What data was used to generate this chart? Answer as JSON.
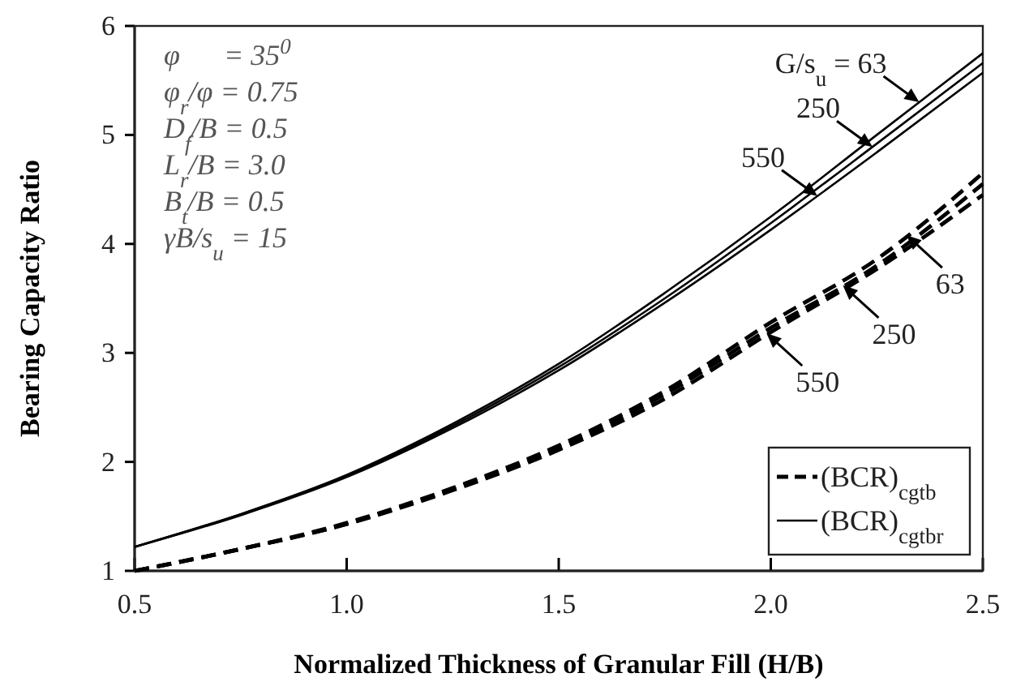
{
  "chart_data": {
    "type": "line",
    "xlabel": "Normalized Thickness of Granular Fill (H/B)",
    "ylabel": "Bearing Capacity Ratio",
    "x": [
      0.5,
      0.75,
      1.0,
      1.25,
      1.5,
      1.75,
      2.0,
      2.25,
      2.5
    ],
    "series": [
      {
        "name": "(BCR)$_{cgtb}$",
        "color": "#000000",
        "line_style": "dashed",
        "values": [
          1.0,
          1.2,
          1.44,
          1.76,
          2.15,
          2.65,
          3.28,
          3.86,
          4.65
        ]
      },
      {
        "color": "#000000",
        "line_style": "dashed",
        "values": [
          1.0,
          1.2,
          1.43,
          1.75,
          2.13,
          2.62,
          3.23,
          3.8,
          4.55
        ]
      },
      {
        "color": "#000000",
        "line_style": "dashed",
        "values": [
          1.0,
          1.2,
          1.43,
          1.74,
          2.11,
          2.58,
          3.19,
          3.77,
          4.45
        ]
      },
      {
        "name": "(BCR)$_{cgtbr}$",
        "color": "#000000",
        "line_style": "solid",
        "values": [
          1.22,
          1.52,
          1.88,
          2.35,
          2.9,
          3.55,
          4.25,
          5.0,
          5.75
        ]
      },
      {
        "color": "#000000",
        "line_style": "solid",
        "values": [
          1.22,
          1.52,
          1.87,
          2.33,
          2.87,
          3.5,
          4.19,
          4.92,
          5.66
        ]
      },
      {
        "color": "#000000",
        "line_style": "solid",
        "values": [
          1.22,
          1.51,
          1.86,
          2.31,
          2.84,
          3.46,
          4.13,
          4.84,
          5.57
        ]
      }
    ],
    "xlim": [
      0.5,
      2.5
    ],
    "xticks": [
      {
        "value": 0.5,
        "label": "0.5"
      },
      {
        "value": 1.0,
        "label": "1.0"
      },
      {
        "value": 1.5,
        "label": "1.5"
      },
      {
        "value": 2.0,
        "label": "2.0"
      },
      {
        "value": 2.5,
        "label": "2.5"
      }
    ],
    "ylim": [
      1,
      6
    ],
    "yticks": [
      1,
      2,
      3,
      4,
      5,
      6
    ],
    "grid": false,
    "legend": "bottom right",
    "marker": "none",
    "annotations": [
      "φ      = 35$^{0}$",
      "φ$_{r}$/φ = 0.75",
      "D$_{f}$/B = 0.5",
      "L$_{r}$/B = 3.0",
      "B$_{t}$/B = 0.5",
      "γB/s$_{u}$ = 15",
      {
        "text": "G/s$_{u}$ = 63",
        "x": 2.35,
        "y": 5.3
      },
      {
        "text": "250",
        "x": 2.24,
        "y": 4.89
      },
      {
        "text": "550",
        "x": 2.11,
        "y": 4.44
      },
      {
        "text": "63",
        "x": 2.32,
        "y": 4.08
      },
      {
        "text": "250",
        "x": 2.17,
        "y": 3.62
      },
      {
        "text": "550",
        "x": 1.99,
        "y": 3.18
      }
    ]
  }
}
